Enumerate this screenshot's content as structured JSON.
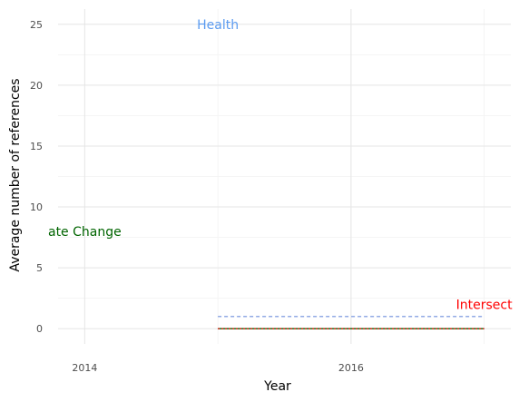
{
  "chart_data": {
    "type": "line",
    "title": "",
    "xlabel": "Year",
    "ylabel": "Average number of references",
    "xlim": [
      2013.8,
      2017.2
    ],
    "ylim": [
      -1.25,
      26.25
    ],
    "x_ticks": [
      2014,
      2016
    ],
    "x_tick_labels": [
      "2014",
      "2016"
    ],
    "y_ticks": [
      0,
      5,
      10,
      15,
      20,
      25
    ],
    "y_tick_labels": [
      "0",
      "5",
      "10",
      "15",
      "20",
      "25"
    ],
    "grid": true,
    "series": [
      {
        "key": "health",
        "x": [
          2015,
          2017
        ],
        "y": [
          1,
          1
        ],
        "color": "#6f8fdc",
        "style": "dashed"
      },
      {
        "key": "climate",
        "x": [
          2015,
          2017
        ],
        "y": [
          0,
          0
        ],
        "color": "#006400",
        "style": "solid"
      },
      {
        "key": "intersect",
        "x": [
          2015,
          2017
        ],
        "y": [
          0,
          0
        ],
        "color": "#ff0000",
        "style": "dotted"
      }
    ],
    "annotations": [
      {
        "key": "health",
        "text": "Health",
        "x": 2015,
        "y": 25,
        "color": "#5b9bf0"
      },
      {
        "key": "climate",
        "text": "ate Change",
        "x": 2014,
        "y": 8,
        "color": "#006400"
      },
      {
        "key": "intersect",
        "text": "Intersect",
        "x": 2017,
        "y": 2,
        "color": "#ff0000"
      }
    ]
  }
}
